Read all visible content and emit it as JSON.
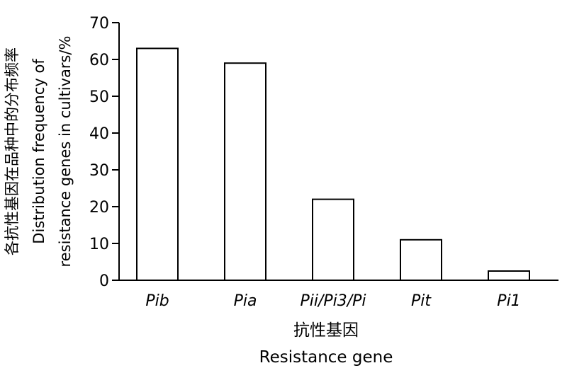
{
  "chart_data": {
    "type": "bar",
    "categories": [
      "Pib",
      "Pia",
      "Pii/Pi3/Pi",
      "Pit",
      "Pi1"
    ],
    "values": [
      63,
      59,
      22,
      11,
      2.5
    ],
    "ylim": [
      0,
      70
    ],
    "yticks": [
      0,
      10,
      20,
      30,
      40,
      50,
      60,
      70
    ],
    "xlabel_cn": "抗性基因",
    "xlabel_en": "Resistance gene",
    "ylabel_cn": "各抗性基因在品种中的分布频率",
    "ylabel_en_line1": "Distribution frequency of",
    "ylabel_en_line2": "resistance genes in cultivars/%",
    "grid": false,
    "legend": "none",
    "bar_fill": "#ffffff",
    "bar_stroke": "#000000"
  }
}
